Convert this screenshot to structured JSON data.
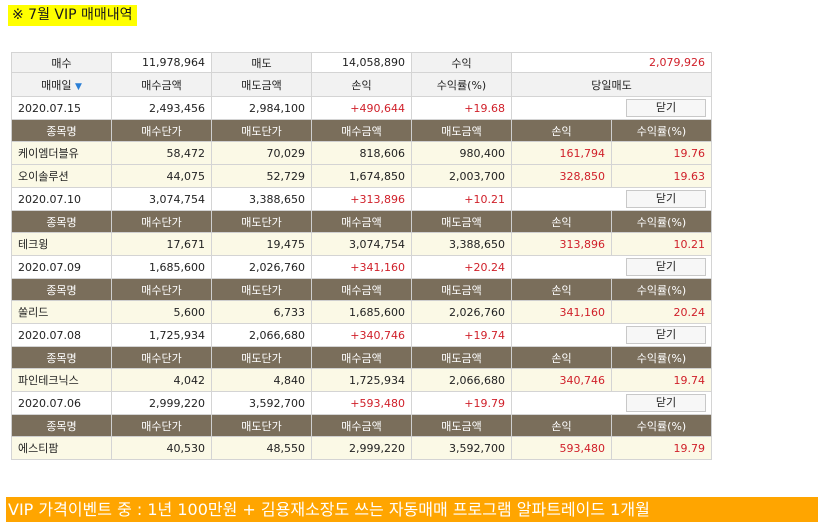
{
  "title": "※  7월 VIP 매매내역",
  "summary": {
    "buy_label": "매수",
    "buy_value": "11,978,964",
    "sell_label": "매도",
    "sell_value": "14,058,890",
    "profit_label": "수익",
    "profit_value": "2,079,926"
  },
  "header": {
    "date": "매매일",
    "buy_amount": "매수금액",
    "sell_amount": "매도금액",
    "pnl": "손익",
    "rate": "수익률(%)",
    "same_day": "당일매도"
  },
  "sub_header": [
    "종목명",
    "매수단가",
    "매도단가",
    "매수금액",
    "매도금액",
    "손익",
    "수익률(%)"
  ],
  "close_label": "닫기",
  "days": [
    {
      "date": "2020.07.15",
      "buy": "2,493,456",
      "sell": "2,984,100",
      "pnl": "+490,644",
      "rate": "+19.68",
      "stocks": [
        {
          "name": "케이엠더블유",
          "buy_price": "58,472",
          "sell_price": "70,029",
          "buy_amt": "818,606",
          "sell_amt": "980,400",
          "pnl": "161,794",
          "rate": "19.76"
        },
        {
          "name": "오이솔루션",
          "buy_price": "44,075",
          "sell_price": "52,729",
          "buy_amt": "1,674,850",
          "sell_amt": "2,003,700",
          "pnl": "328,850",
          "rate": "19.63"
        }
      ]
    },
    {
      "date": "2020.07.10",
      "buy": "3,074,754",
      "sell": "3,388,650",
      "pnl": "+313,896",
      "rate": "+10.21",
      "stocks": [
        {
          "name": "테크윙",
          "buy_price": "17,671",
          "sell_price": "19,475",
          "buy_amt": "3,074,754",
          "sell_amt": "3,388,650",
          "pnl": "313,896",
          "rate": "10.21"
        }
      ]
    },
    {
      "date": "2020.07.09",
      "buy": "1,685,600",
      "sell": "2,026,760",
      "pnl": "+341,160",
      "rate": "+20.24",
      "stocks": [
        {
          "name": "쏠리드",
          "buy_price": "5,600",
          "sell_price": "6,733",
          "buy_amt": "1,685,600",
          "sell_amt": "2,026,760",
          "pnl": "341,160",
          "rate": "20.24"
        }
      ]
    },
    {
      "date": "2020.07.08",
      "buy": "1,725,934",
      "sell": "2,066,680",
      "pnl": "+340,746",
      "rate": "+19.74",
      "stocks": [
        {
          "name": "파인테크닉스",
          "buy_price": "4,042",
          "sell_price": "4,840",
          "buy_amt": "1,725,934",
          "sell_amt": "2,066,680",
          "pnl": "340,746",
          "rate": "19.74"
        }
      ]
    },
    {
      "date": "2020.07.06",
      "buy": "2,999,220",
      "sell": "3,592,700",
      "pnl": "+593,480",
      "rate": "+19.79",
      "stocks": [
        {
          "name": "에스티팜",
          "buy_price": "40,530",
          "sell_price": "48,550",
          "buy_amt": "2,999,220",
          "sell_amt": "3,592,700",
          "pnl": "593,480",
          "rate": "19.79"
        }
      ]
    }
  ],
  "banner": "VIP 가격이벤트 중 : 1년 100만원 + 김용재소장도 쓰는 자동매매 프로그램 알파트레이드 1개월",
  "colors": {
    "profit": "#d0202a",
    "sub_header_bg": "#7a6e5b",
    "row_bg": "#fbf9e6",
    "banner_bg": "#ffa500",
    "title_bg": "#ffff00"
  },
  "icons": {
    "sort": "sort-down-triangle-icon"
  }
}
